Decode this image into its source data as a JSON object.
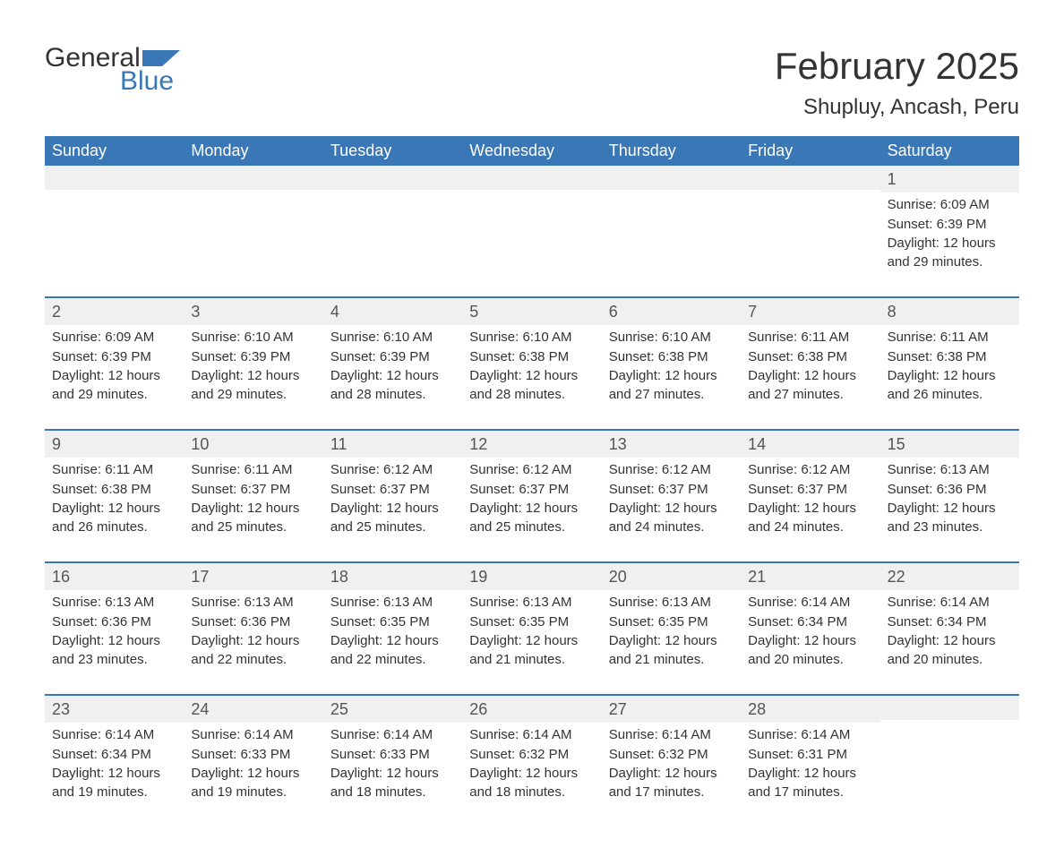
{
  "logo": {
    "word1": "General",
    "word2": "Blue",
    "flag_color": "#3a77b7"
  },
  "title": "February 2025",
  "location": "Shupluy, Ancash, Peru",
  "colors": {
    "header_bg": "#3a77b7",
    "header_fg": "#ffffff",
    "daynum_bg": "#f0f0f0",
    "text": "#333333",
    "row_border": "#3a77b7",
    "page_bg": "#ffffff"
  },
  "typography": {
    "title_fontsize": 42,
    "location_fontsize": 24,
    "dow_fontsize": 18,
    "daynum_fontsize": 18,
    "body_fontsize": 15
  },
  "days_of_week": [
    "Sunday",
    "Monday",
    "Tuesday",
    "Wednesday",
    "Thursday",
    "Friday",
    "Saturday"
  ],
  "weeks": [
    [
      null,
      null,
      null,
      null,
      null,
      null,
      {
        "n": "1",
        "sunrise": "Sunrise: 6:09 AM",
        "sunset": "Sunset: 6:39 PM",
        "daylight1": "Daylight: 12 hours",
        "daylight2": "and 29 minutes."
      }
    ],
    [
      {
        "n": "2",
        "sunrise": "Sunrise: 6:09 AM",
        "sunset": "Sunset: 6:39 PM",
        "daylight1": "Daylight: 12 hours",
        "daylight2": "and 29 minutes."
      },
      {
        "n": "3",
        "sunrise": "Sunrise: 6:10 AM",
        "sunset": "Sunset: 6:39 PM",
        "daylight1": "Daylight: 12 hours",
        "daylight2": "and 29 minutes."
      },
      {
        "n": "4",
        "sunrise": "Sunrise: 6:10 AM",
        "sunset": "Sunset: 6:39 PM",
        "daylight1": "Daylight: 12 hours",
        "daylight2": "and 28 minutes."
      },
      {
        "n": "5",
        "sunrise": "Sunrise: 6:10 AM",
        "sunset": "Sunset: 6:38 PM",
        "daylight1": "Daylight: 12 hours",
        "daylight2": "and 28 minutes."
      },
      {
        "n": "6",
        "sunrise": "Sunrise: 6:10 AM",
        "sunset": "Sunset: 6:38 PM",
        "daylight1": "Daylight: 12 hours",
        "daylight2": "and 27 minutes."
      },
      {
        "n": "7",
        "sunrise": "Sunrise: 6:11 AM",
        "sunset": "Sunset: 6:38 PM",
        "daylight1": "Daylight: 12 hours",
        "daylight2": "and 27 minutes."
      },
      {
        "n": "8",
        "sunrise": "Sunrise: 6:11 AM",
        "sunset": "Sunset: 6:38 PM",
        "daylight1": "Daylight: 12 hours",
        "daylight2": "and 26 minutes."
      }
    ],
    [
      {
        "n": "9",
        "sunrise": "Sunrise: 6:11 AM",
        "sunset": "Sunset: 6:38 PM",
        "daylight1": "Daylight: 12 hours",
        "daylight2": "and 26 minutes."
      },
      {
        "n": "10",
        "sunrise": "Sunrise: 6:11 AM",
        "sunset": "Sunset: 6:37 PM",
        "daylight1": "Daylight: 12 hours",
        "daylight2": "and 25 minutes."
      },
      {
        "n": "11",
        "sunrise": "Sunrise: 6:12 AM",
        "sunset": "Sunset: 6:37 PM",
        "daylight1": "Daylight: 12 hours",
        "daylight2": "and 25 minutes."
      },
      {
        "n": "12",
        "sunrise": "Sunrise: 6:12 AM",
        "sunset": "Sunset: 6:37 PM",
        "daylight1": "Daylight: 12 hours",
        "daylight2": "and 25 minutes."
      },
      {
        "n": "13",
        "sunrise": "Sunrise: 6:12 AM",
        "sunset": "Sunset: 6:37 PM",
        "daylight1": "Daylight: 12 hours",
        "daylight2": "and 24 minutes."
      },
      {
        "n": "14",
        "sunrise": "Sunrise: 6:12 AM",
        "sunset": "Sunset: 6:37 PM",
        "daylight1": "Daylight: 12 hours",
        "daylight2": "and 24 minutes."
      },
      {
        "n": "15",
        "sunrise": "Sunrise: 6:13 AM",
        "sunset": "Sunset: 6:36 PM",
        "daylight1": "Daylight: 12 hours",
        "daylight2": "and 23 minutes."
      }
    ],
    [
      {
        "n": "16",
        "sunrise": "Sunrise: 6:13 AM",
        "sunset": "Sunset: 6:36 PM",
        "daylight1": "Daylight: 12 hours",
        "daylight2": "and 23 minutes."
      },
      {
        "n": "17",
        "sunrise": "Sunrise: 6:13 AM",
        "sunset": "Sunset: 6:36 PM",
        "daylight1": "Daylight: 12 hours",
        "daylight2": "and 22 minutes."
      },
      {
        "n": "18",
        "sunrise": "Sunrise: 6:13 AM",
        "sunset": "Sunset: 6:35 PM",
        "daylight1": "Daylight: 12 hours",
        "daylight2": "and 22 minutes."
      },
      {
        "n": "19",
        "sunrise": "Sunrise: 6:13 AM",
        "sunset": "Sunset: 6:35 PM",
        "daylight1": "Daylight: 12 hours",
        "daylight2": "and 21 minutes."
      },
      {
        "n": "20",
        "sunrise": "Sunrise: 6:13 AM",
        "sunset": "Sunset: 6:35 PM",
        "daylight1": "Daylight: 12 hours",
        "daylight2": "and 21 minutes."
      },
      {
        "n": "21",
        "sunrise": "Sunrise: 6:14 AM",
        "sunset": "Sunset: 6:34 PM",
        "daylight1": "Daylight: 12 hours",
        "daylight2": "and 20 minutes."
      },
      {
        "n": "22",
        "sunrise": "Sunrise: 6:14 AM",
        "sunset": "Sunset: 6:34 PM",
        "daylight1": "Daylight: 12 hours",
        "daylight2": "and 20 minutes."
      }
    ],
    [
      {
        "n": "23",
        "sunrise": "Sunrise: 6:14 AM",
        "sunset": "Sunset: 6:34 PM",
        "daylight1": "Daylight: 12 hours",
        "daylight2": "and 19 minutes."
      },
      {
        "n": "24",
        "sunrise": "Sunrise: 6:14 AM",
        "sunset": "Sunset: 6:33 PM",
        "daylight1": "Daylight: 12 hours",
        "daylight2": "and 19 minutes."
      },
      {
        "n": "25",
        "sunrise": "Sunrise: 6:14 AM",
        "sunset": "Sunset: 6:33 PM",
        "daylight1": "Daylight: 12 hours",
        "daylight2": "and 18 minutes."
      },
      {
        "n": "26",
        "sunrise": "Sunrise: 6:14 AM",
        "sunset": "Sunset: 6:32 PM",
        "daylight1": "Daylight: 12 hours",
        "daylight2": "and 18 minutes."
      },
      {
        "n": "27",
        "sunrise": "Sunrise: 6:14 AM",
        "sunset": "Sunset: 6:32 PM",
        "daylight1": "Daylight: 12 hours",
        "daylight2": "and 17 minutes."
      },
      {
        "n": "28",
        "sunrise": "Sunrise: 6:14 AM",
        "sunset": "Sunset: 6:31 PM",
        "daylight1": "Daylight: 12 hours",
        "daylight2": "and 17 minutes."
      },
      null
    ]
  ]
}
